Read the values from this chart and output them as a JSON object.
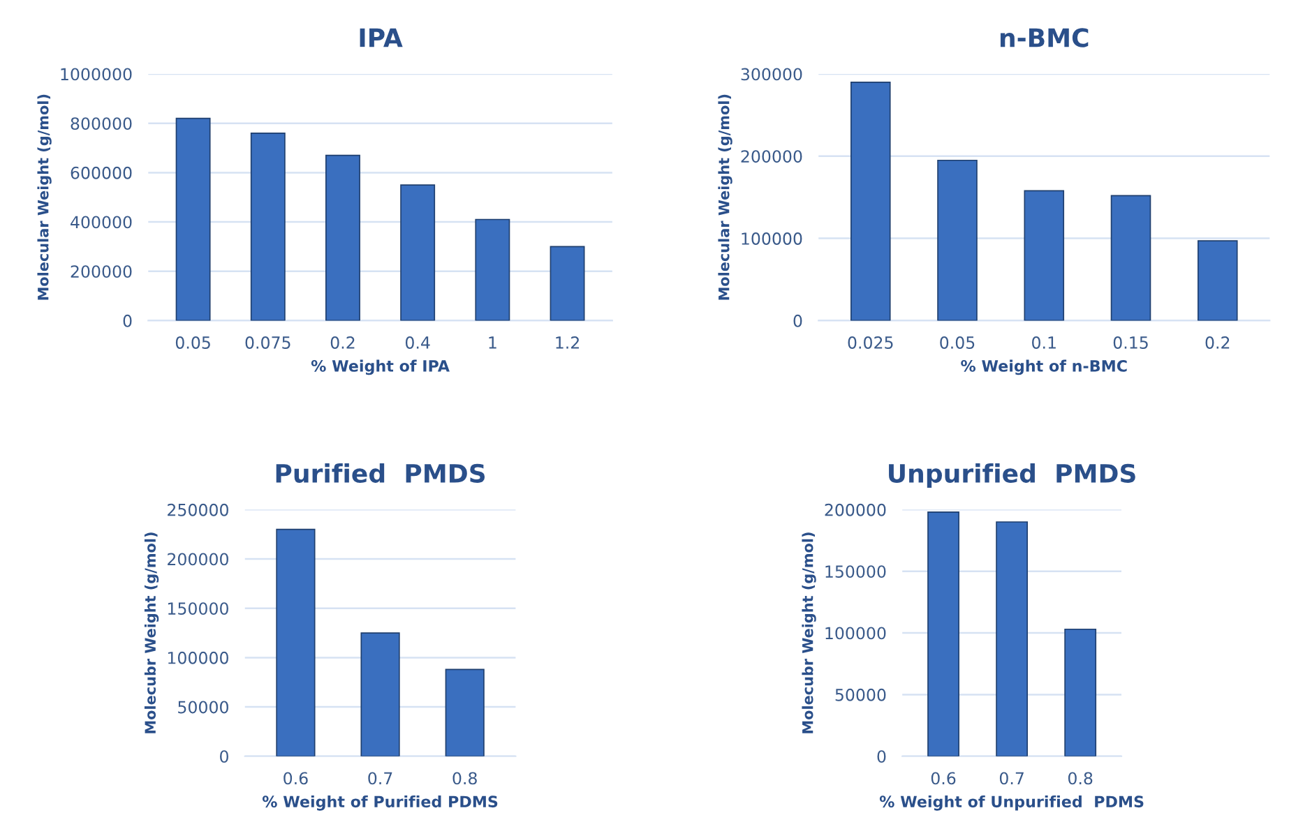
{
  "chart_data": [
    {
      "type": "bar",
      "title": "IPA",
      "xlabel": "% Weight of IPA",
      "ylabel": "Molecular Weight (g/mol)",
      "categories": [
        "0.05",
        "0.075",
        "0.2",
        "0.4",
        "1",
        "1.2"
      ],
      "values": [
        820000,
        760000,
        670000,
        550000,
        410000,
        300000
      ],
      "color": "#3a6fbf",
      "ylim": [
        0,
        1000000
      ],
      "yticks": [
        0,
        200000,
        400000,
        600000,
        800000,
        1000000
      ],
      "grid": "y"
    },
    {
      "type": "bar",
      "title": "n-BMC",
      "xlabel": "% Weight of n-BMC",
      "ylabel": "Molecular Weight (g/mol)",
      "categories": [
        "0.025",
        "0.05",
        "0.1",
        "0.15",
        "0.2"
      ],
      "values": [
        290000,
        195000,
        158000,
        152000,
        97000
      ],
      "color": "#3a6fbf",
      "ylim": [
        0,
        300000
      ],
      "yticks": [
        0,
        100000,
        200000,
        300000
      ],
      "grid": "y"
    },
    {
      "type": "bar",
      "title": "Purified  PMDS",
      "xlabel": "% Weight of Purified PDMS",
      "ylabel": "Molecubr Weight (g/mol)",
      "categories": [
        "0.6",
        "0.7",
        "0.8"
      ],
      "values": [
        230000,
        125000,
        88000
      ],
      "color": "#3a6fbf",
      "ylim": [
        0,
        250000
      ],
      "yticks": [
        0,
        50000,
        100000,
        150000,
        200000,
        250000
      ],
      "grid": "y"
    },
    {
      "type": "bar",
      "title": "Unpurified  PMDS",
      "xlabel": "% Weight of Unpurified  PDMS",
      "ylabel": "Molecubr Weight (g/mol)",
      "categories": [
        "0.6",
        "0.7",
        "0.8"
      ],
      "values": [
        198000,
        190000,
        103000
      ],
      "color": "#3a6fbf",
      "ylim": [
        0,
        200000
      ],
      "yticks": [
        0,
        50000,
        100000,
        150000,
        200000
      ],
      "grid": "y"
    }
  ]
}
